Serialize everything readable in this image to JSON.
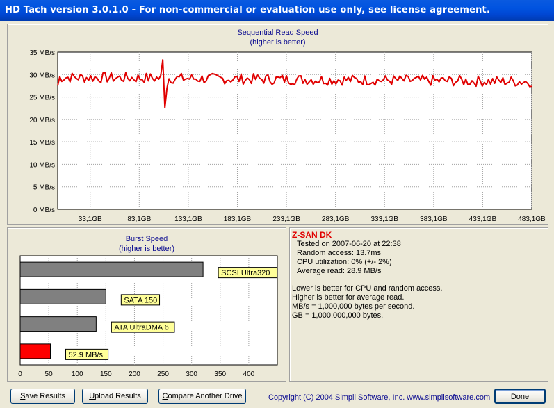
{
  "window": {
    "title": "HD Tach version 3.0.1.0  - For non-commercial or evaluation use only, see license agreement."
  },
  "colors": {
    "titlebar": "#0054e3",
    "series_line": "#e00000",
    "chart_title": "#0a0a90",
    "info_name": "#e00000",
    "label_bg": "#ffff99"
  },
  "seq_chart": {
    "title": "Sequential Read Speed",
    "subtitle": "(higher is better)"
  },
  "burst_chart": {
    "title": "Burst Speed",
    "subtitle": "(higher is better)"
  },
  "chart_data": [
    {
      "type": "line",
      "title": "Sequential Read Speed",
      "subtitle": "(higher is better)",
      "y_ticks": [
        "35 MB/s",
        "30 MB/s",
        "25 MB/s",
        "20 MB/s",
        "15 MB/s",
        "10 MB/s",
        "5 MB/s",
        "0 MB/s"
      ],
      "x_ticks": [
        "33,1GB",
        "83,1GB",
        "133,1GB",
        "183,1GB",
        "233,1GB",
        "283,1GB",
        "333,1GB",
        "383,1GB",
        "433,1GB",
        "483,1GB"
      ],
      "ylim": [
        0,
        35
      ],
      "xlim": [
        0,
        483.1
      ],
      "grid": true,
      "series": [
        {
          "values_summary": "approx 28-30 MB/s across the drive, spike to 33 MB/s and dip to 22.5 MB/s near 108 GB"
        }
      ]
    },
    {
      "type": "bar",
      "title": "Burst Speed",
      "subtitle": "(higher is better)",
      "orientation": "horizontal",
      "categories": [
        "SCSI Ultra320",
        "SATA 150",
        "ATA UltraDMA 6",
        "52.9 MB/s"
      ],
      "values": [
        320,
        150,
        133,
        52.9
      ],
      "bar_colors": [
        "#808080",
        "#808080",
        "#808080",
        "#ff0000"
      ],
      "x_ticks": [
        "0",
        "50",
        "100",
        "150",
        "200",
        "250",
        "300",
        "350",
        "400"
      ],
      "xlim": [
        0,
        450
      ],
      "grid": true
    }
  ],
  "info": {
    "drive_name": "Z-SAN DK",
    "tested_on": "Tested on 2007-06-20 at 22:38",
    "random_access": "Random access: 13.7ms",
    "cpu_utilization": "CPU utilization: 0% (+/- 2%)",
    "average_read": "Average read: 28.9 MB/s",
    "note1": "Lower is better for CPU and random access.",
    "note2": "Higher is better for average read.",
    "note3": "MB/s = 1,000,000 bytes per second.",
    "note4": "GB = 1,000,000,000 bytes."
  },
  "buttons": {
    "save_prefix": "S",
    "save_rest": "ave Results",
    "upload_prefix": "U",
    "upload_rest": "pload Results",
    "compare_prefix": "C",
    "compare_rest": "ompare Another Drive",
    "done_prefix": "D",
    "done_rest": "one"
  },
  "footer": {
    "copyright": "Copyright (C) 2004 Simpli Software, Inc. www.simplisoftware.com"
  }
}
